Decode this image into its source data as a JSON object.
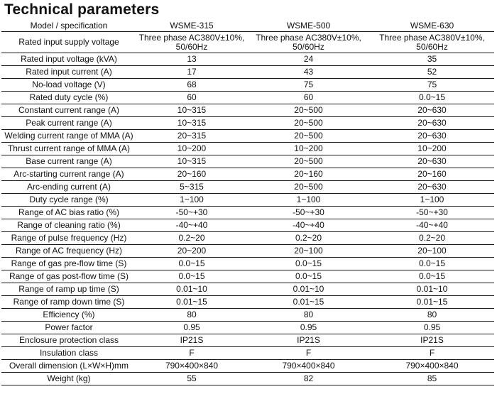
{
  "title": "Technical parameters",
  "table": {
    "headers": [
      "Model / specification",
      "WSME-315",
      "WSME-500",
      "WSME-630"
    ],
    "rows": [
      {
        "label": "Rated input supply voltage",
        "v1": "Three phase AC380V±10%, 50/60Hz",
        "v2": "Three phase AC380V±10%, 50/60Hz",
        "v3": "Three phase AC380V±10%, 50/60Hz"
      },
      {
        "label": "Rated input voltage (kVA)",
        "v1": "13",
        "v2": "24",
        "v3": "35"
      },
      {
        "label": "Rated input current (A)",
        "v1": "17",
        "v2": "43",
        "v3": "52"
      },
      {
        "label": "No-load voltage (V)",
        "v1": "68",
        "v2": "75",
        "v3": "75"
      },
      {
        "label": "Rated duty cycle (%)",
        "v1": "60",
        "v2": "60",
        "v3": "0.0~15"
      },
      {
        "label": "Constant current range (A)",
        "v1": "10~315",
        "v2": "20~500",
        "v3": "20~630"
      },
      {
        "label": "Peak current range (A)",
        "v1": "10~315",
        "v2": "20~500",
        "v3": "20~630"
      },
      {
        "label": "Welding current range of MMA (A)",
        "v1": "20~315",
        "v2": "20~500",
        "v3": "20~630"
      },
      {
        "label": "Thrust current range of MMA (A)",
        "v1": "10~200",
        "v2": "10~200",
        "v3": "10~200"
      },
      {
        "label": "Base current range (A)",
        "v1": "10~315",
        "v2": "20~500",
        "v3": "20~630"
      },
      {
        "label": "Arc-starting current range (A)",
        "v1": "20~160",
        "v2": "20~160",
        "v3": "20~160"
      },
      {
        "label": "Arc-ending current (A)",
        "v1": "5~315",
        "v2": "20~500",
        "v3": "20~630"
      },
      {
        "label": "Duty cycle range (%)",
        "v1": "1~100",
        "v2": "1~100",
        "v3": "1~100"
      },
      {
        "label": "Range of AC bias ratio (%)",
        "v1": "-50~+30",
        "v2": "-50~+30",
        "v3": "-50~+30"
      },
      {
        "label": "Range of cleaning ratio (%)",
        "v1": "-40~+40",
        "v2": "-40~+40",
        "v3": "-40~+40"
      },
      {
        "label": "Range of pulse frequency (Hz)",
        "v1": "0.2~20",
        "v2": "0.2~20",
        "v3": "0.2~20"
      },
      {
        "label": "Range of AC frequency (Hz)",
        "v1": "20~200",
        "v2": "20~100",
        "v3": "20~100"
      },
      {
        "label": "Range of gas pre-flow time (S)",
        "v1": "0.0~15",
        "v2": "0.0~15",
        "v3": "0.0~15"
      },
      {
        "label": "Range of gas post-flow time (S)",
        "v1": "0.0~15",
        "v2": "0.0~15",
        "v3": "0.0~15"
      },
      {
        "label": "Range of ramp up time (S)",
        "v1": "0.01~10",
        "v2": "0.01~10",
        "v3": "0.01~10"
      },
      {
        "label": "Range of ramp down time (S)",
        "v1": "0.01~15",
        "v2": "0.01~15",
        "v3": "0.01~15"
      },
      {
        "label": "Efficiency (%)",
        "v1": "80",
        "v2": "80",
        "v3": "80"
      },
      {
        "label": "Power factor",
        "v1": "0.95",
        "v2": "0.95",
        "v3": "0.95"
      },
      {
        "label": "Enclosure protection class",
        "v1": "IP21S",
        "v2": "IP21S",
        "v3": "IP21S"
      },
      {
        "label": "Insulation class",
        "v1": "F",
        "v2": "F",
        "v3": "F"
      },
      {
        "label": "Overall dimension (L×W×H)mm",
        "v1": "790×400×840",
        "v2": "790×400×840",
        "v3": "790×400×840"
      },
      {
        "label": "Weight (kg)",
        "v1": "55",
        "v2": "82",
        "v3": "85"
      }
    ]
  }
}
